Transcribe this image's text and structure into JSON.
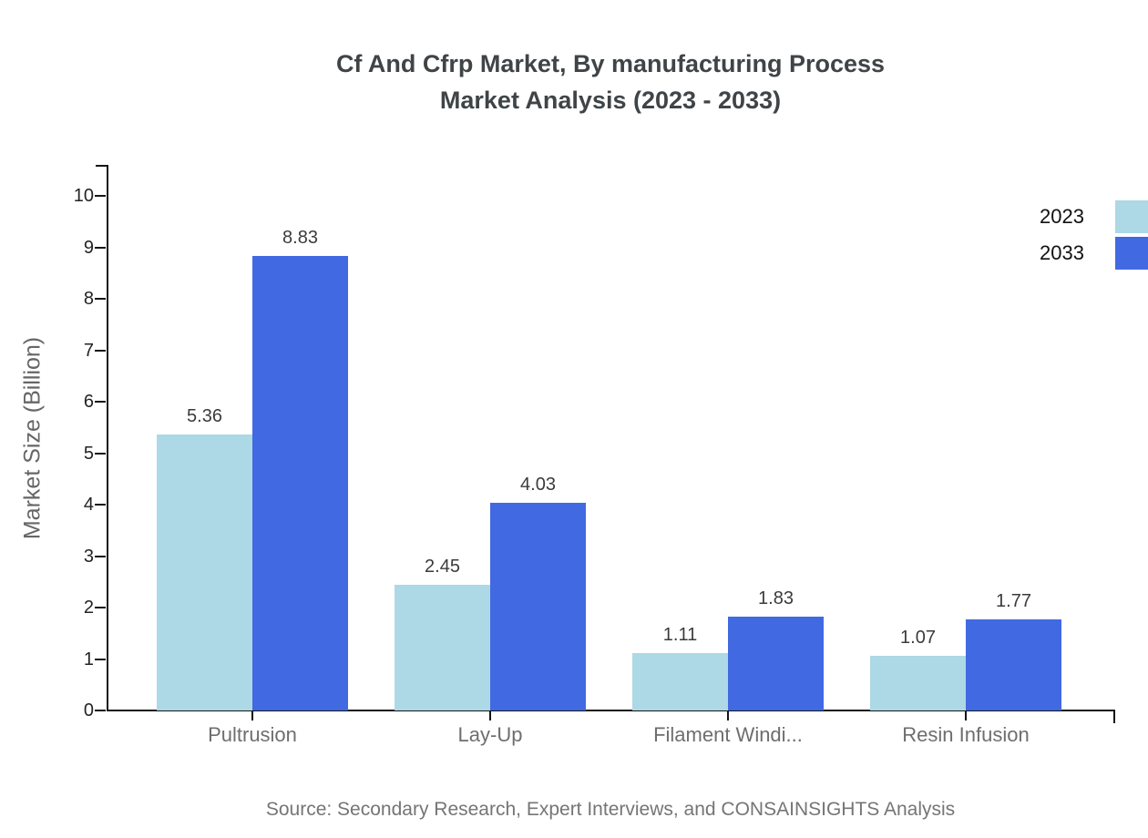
{
  "title": {
    "line1": "Cf And Cfrp Market, By manufacturing Process",
    "line2": "Market Analysis (2023 - 2033)"
  },
  "source": "Source: Secondary Research, Expert Interviews, and CONSAINSIGHTS Analysis",
  "chart_data": {
    "type": "bar",
    "title": "Cf And Cfrp Market, By manufacturing Process Market Analysis (2023 - 2033)",
    "categories": [
      "Pultrusion",
      "Lay-Up",
      "Filament Windi...",
      "Resin Infusion"
    ],
    "series": [
      {
        "name": "2023",
        "color": "#ADD8E6",
        "values": [
          5.36,
          2.45,
          1.11,
          1.07
        ]
      },
      {
        "name": "2033",
        "color": "#4169E1",
        "values": [
          8.83,
          4.03,
          1.83,
          1.77
        ]
      }
    ],
    "xlabel": "",
    "ylabel": "Market Size (Billion)",
    "ylim": [
      0,
      10
    ],
    "yticks": [
      0,
      1,
      2,
      3,
      4,
      5,
      6,
      7,
      8,
      9,
      10
    ],
    "grid": false,
    "value_labels": true,
    "legend_position": "top-right"
  }
}
